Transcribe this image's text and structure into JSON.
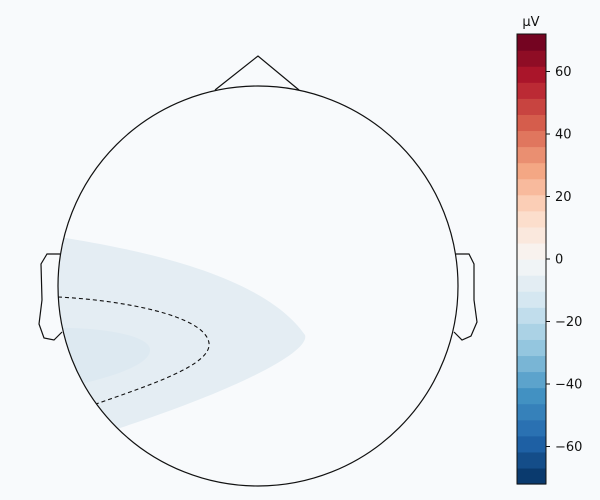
{
  "chart_data": {
    "type": "heatmap",
    "title": "",
    "colorbar": {
      "label": "µV",
      "range": [
        -72,
        72
      ],
      "ticks": [
        -60,
        -40,
        -20,
        0,
        20,
        40,
        60
      ],
      "colormap": "RdBu_r",
      "colors": [
        "#053061",
        "#2166ac",
        "#4393c3",
        "#92c5de",
        "#d1e5f0",
        "#f7f7f7",
        "#fddbc7",
        "#f4a582",
        "#d6604d",
        "#b2182b",
        "#67001f"
      ]
    },
    "topomap": {
      "field_color_outer": "#e4edf3",
      "field_color_inner": "#dde9f1",
      "contour_level": -10,
      "contour_style": "dashed"
    }
  }
}
